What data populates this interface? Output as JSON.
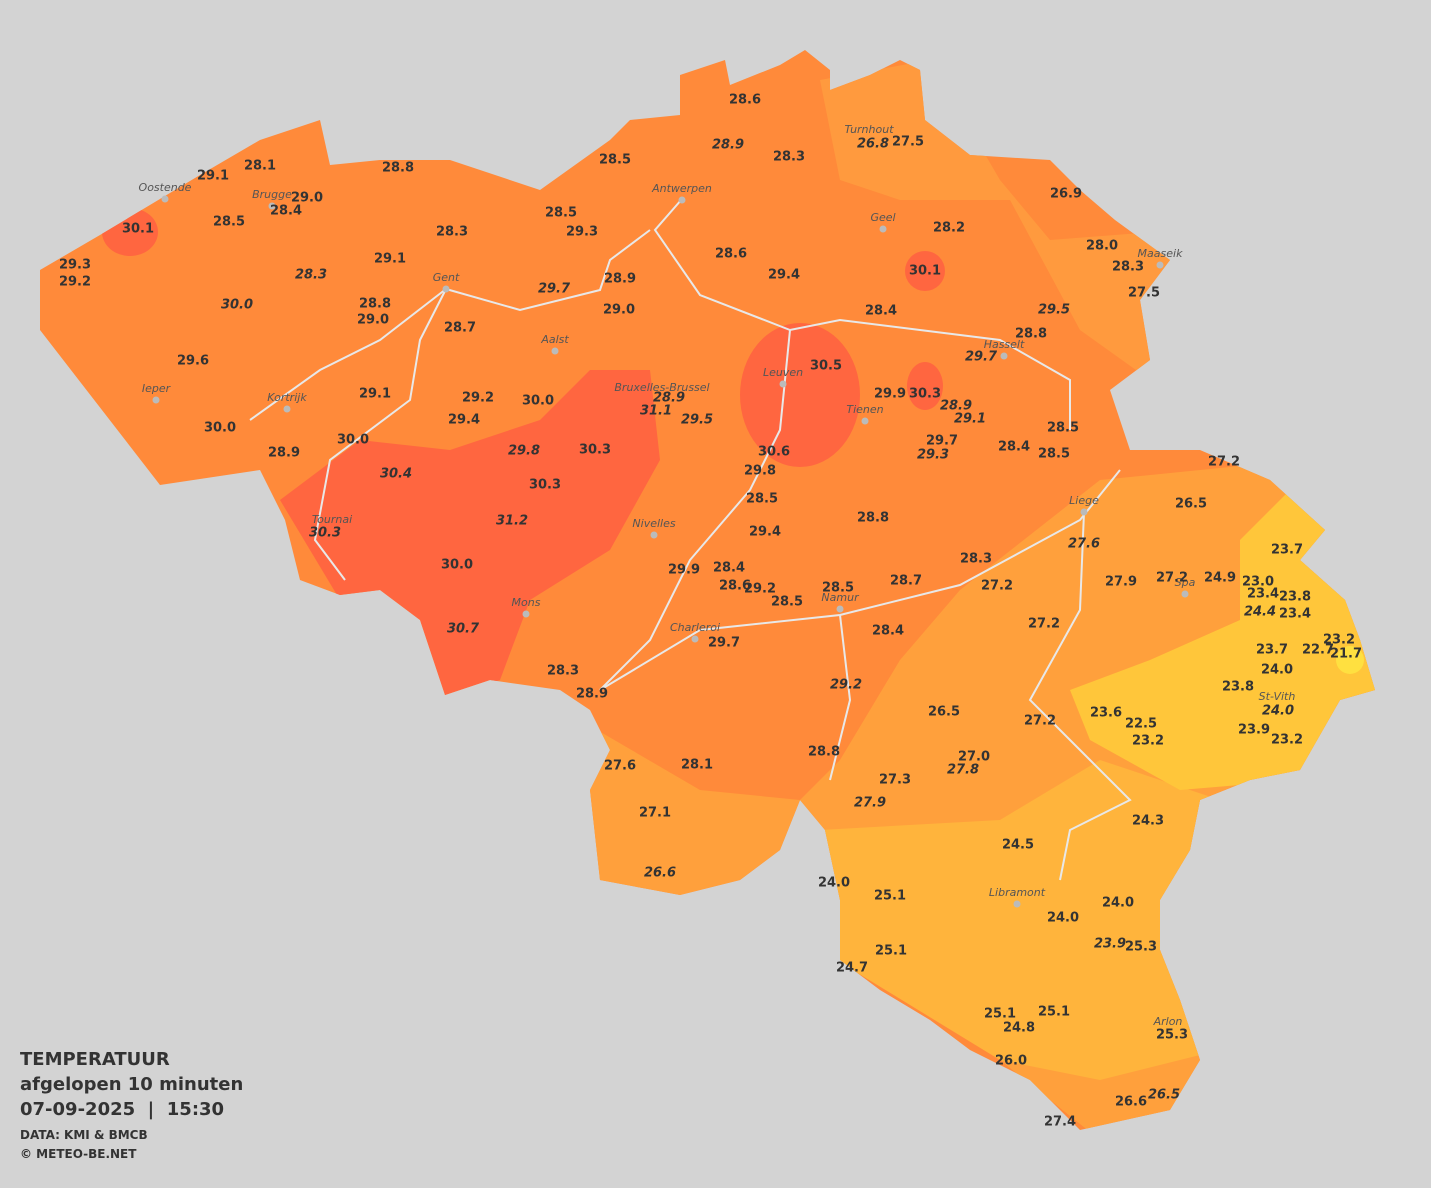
{
  "legend": {
    "title": "TEMPERATUUR",
    "subtitle": "afgelopen 10 minuten",
    "datetime": "07-09-2025  |  15:30",
    "source": "DATA: KMI & BMCB",
    "copyright": "© METEO-BE.NET"
  },
  "cities": [
    "Oostende",
    "Brugge",
    "Gent",
    "Antwerpen",
    "Turnhout",
    "Geel",
    "Maaseik",
    "Hasselt",
    "Aalst",
    "Leuven",
    "Tienen",
    "Bruxelles-Brussel",
    "Ieper",
    "Kortrijk",
    "Tournai",
    "Nivelles",
    "Liege",
    "Spa",
    "Mons",
    "Namur",
    "Charleroi",
    "St-Vith",
    "Libramont",
    "Arlon"
  ],
  "temperatures": [
    "28.6",
    "28.9",
    "28.3",
    "28.5",
    "28.1",
    "28.8",
    "29.1",
    "29.0",
    "28.4",
    "30.1",
    "28.5",
    "28.5",
    "28.3",
    "29.3",
    "29.3",
    "29.2",
    "28.3",
    "29.1",
    "29.7",
    "28.9",
    "29.0",
    "30.0",
    "28.8",
    "29.0",
    "28.7",
    "29.6",
    "29.1",
    "29.2",
    "30.0",
    "29.4",
    "30.0",
    "30.0",
    "28.9",
    "29.8",
    "30.3",
    "30.4",
    "30.3",
    "31.2",
    "30.3",
    "30.0",
    "30.7",
    "28.9",
    "31.1",
    "29.5",
    "30.5",
    "28.4",
    "29.5",
    "28.8",
    "29.7",
    "29.9",
    "30.3",
    "28.9",
    "29.1",
    "29.7",
    "29.3",
    "28.4",
    "28.5",
    "28.5",
    "30.6",
    "29.8",
    "28.5",
    "28.8",
    "29.4",
    "29.9",
    "28.4",
    "28.6",
    "29.2",
    "28.5",
    "28.5",
    "28.7",
    "28.3",
    "27.2",
    "28.4",
    "29.7",
    "28.3",
    "28.9",
    "29.2",
    "28.8",
    "28.1",
    "27.6",
    "27.1",
    "26.6",
    "26.5",
    "27.2",
    "27.0",
    "27.8",
    "27.3",
    "27.9",
    "27.2",
    "27.6",
    "27.9",
    "27.2",
    "24.9",
    "23.0",
    "23.4",
    "23.8",
    "24.4",
    "23.4",
    "23.7",
    "27.2",
    "26.5",
    "23.7",
    "23.2",
    "22.7",
    "21.7",
    "24.0",
    "23.8",
    "24.0",
    "23.6",
    "22.5",
    "23.2",
    "23.9",
    "23.2",
    "24.3",
    "24.5",
    "24.0",
    "25.1",
    "24.0",
    "24.0",
    "23.9",
    "25.3",
    "25.1",
    "24.7",
    "25.1",
    "25.1",
    "24.8",
    "25.3",
    "26.0",
    "26.6",
    "26.5",
    "27.4",
    "26.8",
    "27.5",
    "26.9",
    "28.2",
    "30.1",
    "28.0",
    "28.3",
    "27.5",
    "28.6",
    "29.4"
  ]
}
